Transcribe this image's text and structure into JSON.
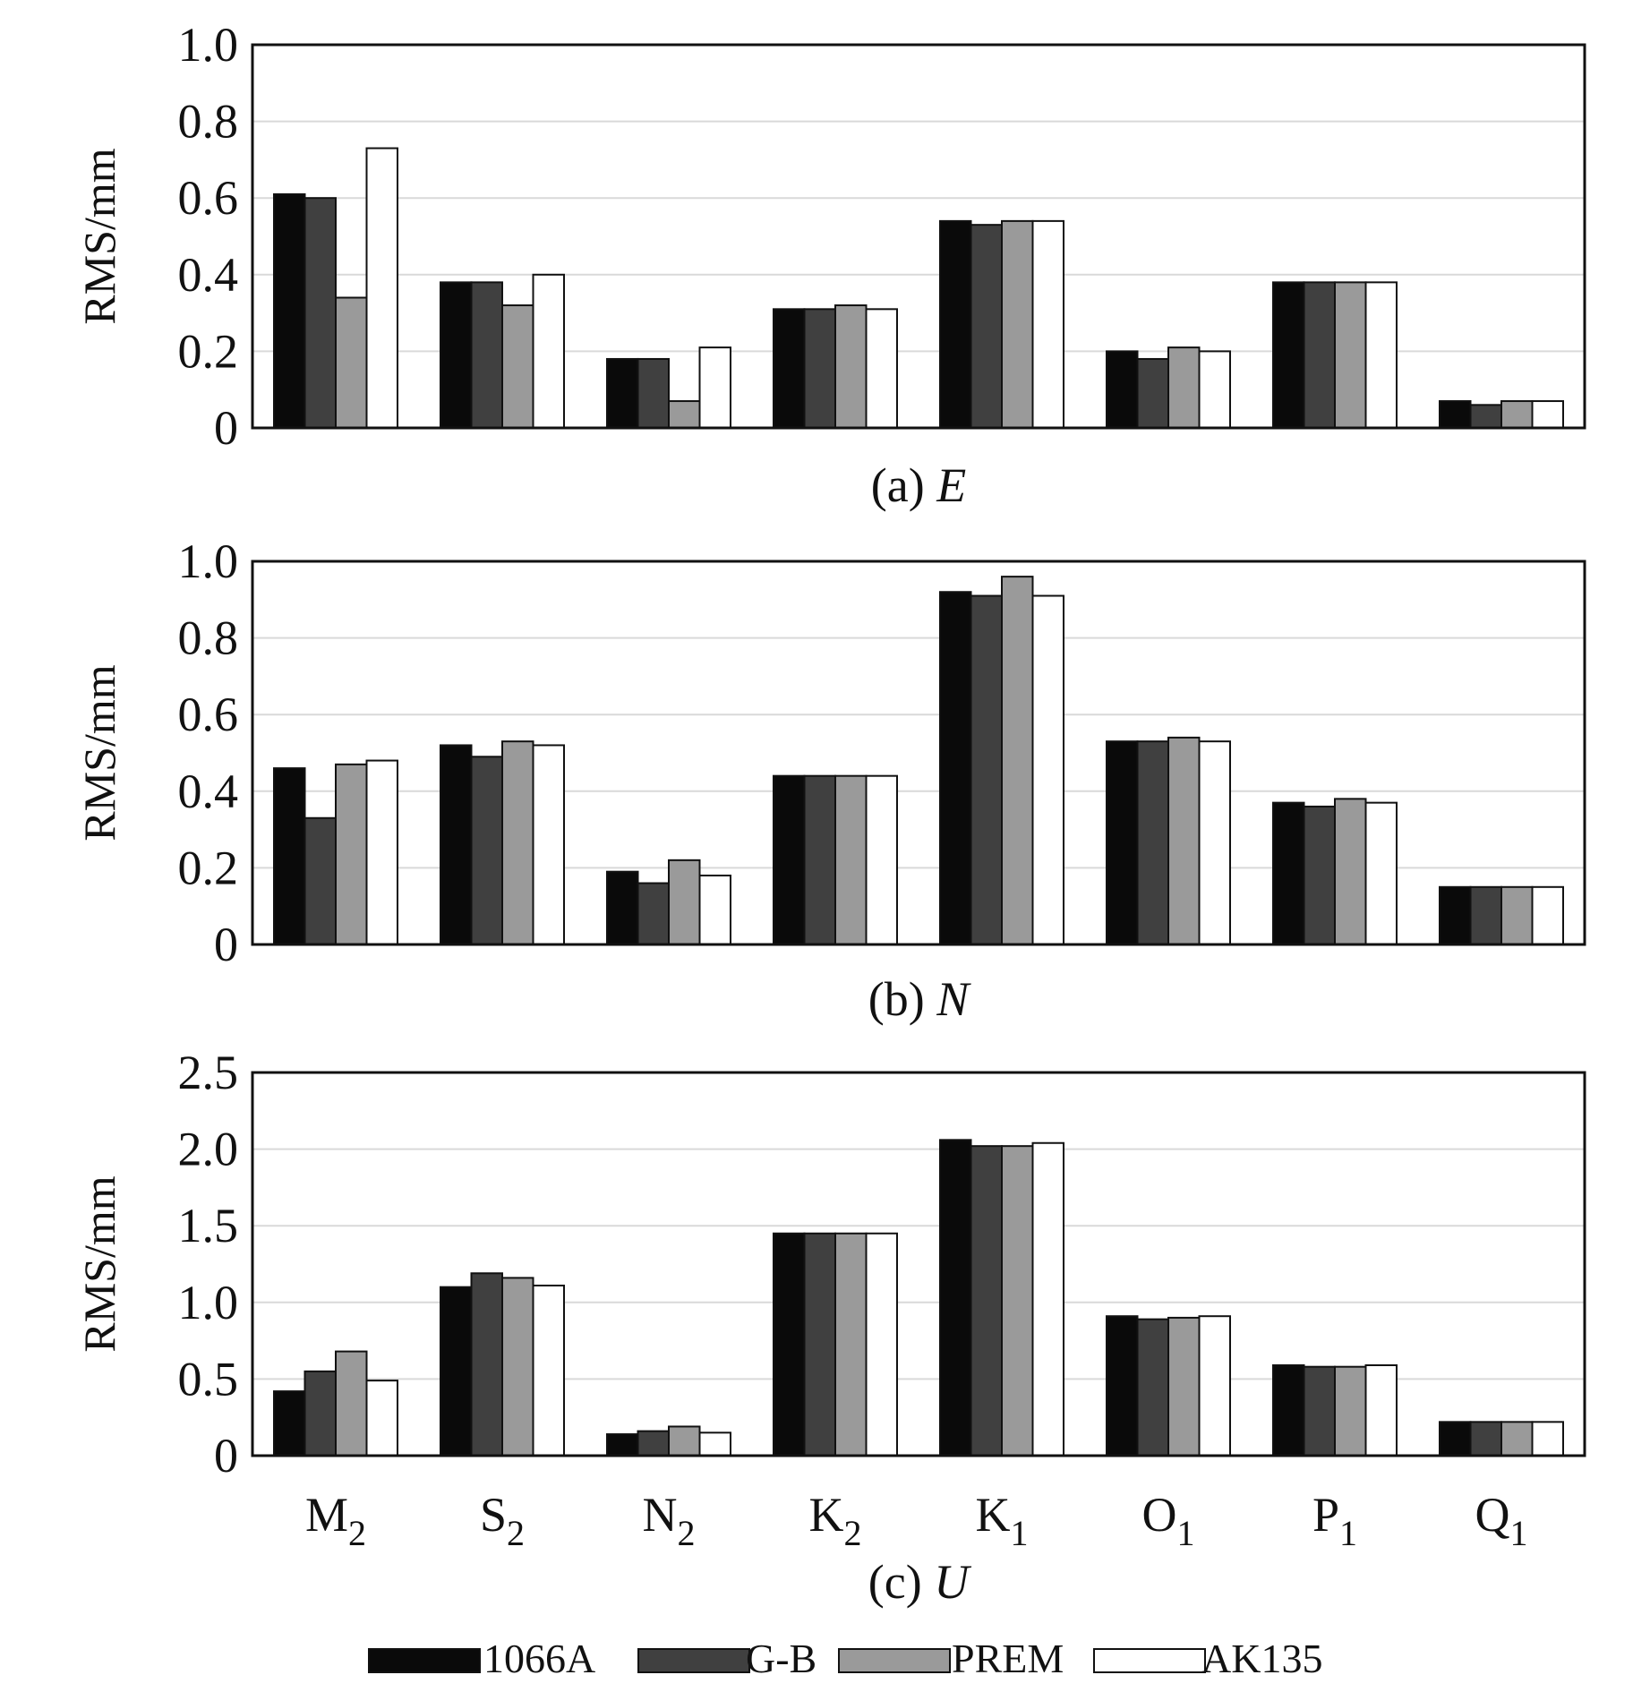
{
  "chart_data": [
    {
      "type": "bar",
      "caption_prefix": "(a) ",
      "caption_italic": "E",
      "ylabel": "RMS/mm",
      "ylim": [
        0,
        1.0
      ],
      "yticks": [
        "0",
        "0.2",
        "0.4",
        "0.6",
        "0.8",
        "1.0"
      ],
      "ytick_values": [
        0,
        0.2,
        0.4,
        0.6,
        0.8,
        1.0
      ],
      "categories": [
        "M2",
        "S2",
        "N2",
        "K2",
        "K1",
        "O1",
        "P1",
        "Q1"
      ],
      "grid": true,
      "series": [
        {
          "name": "1066A",
          "values": [
            0.61,
            0.38,
            0.18,
            0.31,
            0.54,
            0.2,
            0.38,
            0.07
          ]
        },
        {
          "name": "G-B",
          "values": [
            0.6,
            0.38,
            0.18,
            0.31,
            0.53,
            0.18,
            0.38,
            0.06
          ]
        },
        {
          "name": "PREM",
          "values": [
            0.34,
            0.32,
            0.07,
            0.32,
            0.54,
            0.21,
            0.38,
            0.07
          ]
        },
        {
          "name": "AK135",
          "values": [
            0.73,
            0.4,
            0.21,
            0.31,
            0.54,
            0.2,
            0.38,
            0.07
          ]
        }
      ]
    },
    {
      "type": "bar",
      "caption_prefix": "(b) ",
      "caption_italic": "N",
      "ylabel": "RMS/mm",
      "ylim": [
        0,
        1.0
      ],
      "yticks": [
        "0",
        "0.2",
        "0.4",
        "0.6",
        "0.8",
        "1.0"
      ],
      "ytick_values": [
        0,
        0.2,
        0.4,
        0.6,
        0.8,
        1.0
      ],
      "categories": [
        "M2",
        "S2",
        "N2",
        "K2",
        "K1",
        "O1",
        "P1",
        "Q1"
      ],
      "grid": true,
      "series": [
        {
          "name": "1066A",
          "values": [
            0.46,
            0.52,
            0.19,
            0.44,
            0.92,
            0.53,
            0.37,
            0.15
          ]
        },
        {
          "name": "G-B",
          "values": [
            0.33,
            0.49,
            0.16,
            0.44,
            0.91,
            0.53,
            0.36,
            0.15
          ]
        },
        {
          "name": "PREM",
          "values": [
            0.47,
            0.53,
            0.22,
            0.44,
            0.96,
            0.54,
            0.38,
            0.15
          ]
        },
        {
          "name": "AK135",
          "values": [
            0.48,
            0.52,
            0.18,
            0.44,
            0.91,
            0.53,
            0.37,
            0.15
          ]
        }
      ]
    },
    {
      "type": "bar",
      "caption_prefix": "(c) ",
      "caption_italic": "U",
      "ylabel": "RMS/mm",
      "ylim": [
        0,
        2.5
      ],
      "yticks": [
        "0",
        "0.5",
        "1.0",
        "1.5",
        "2.0",
        "2.5"
      ],
      "ytick_values": [
        0,
        0.5,
        1.0,
        1.5,
        2.0,
        2.5
      ],
      "categories": [
        "M2",
        "S2",
        "N2",
        "K2",
        "K1",
        "O1",
        "P1",
        "Q1"
      ],
      "grid": true,
      "series": [
        {
          "name": "1066A",
          "values": [
            0.42,
            1.1,
            0.14,
            1.45,
            2.06,
            0.91,
            0.59,
            0.22
          ]
        },
        {
          "name": "G-B",
          "values": [
            0.55,
            1.19,
            0.16,
            1.45,
            2.02,
            0.89,
            0.58,
            0.22
          ]
        },
        {
          "name": "PREM",
          "values": [
            0.68,
            1.16,
            0.19,
            1.45,
            2.02,
            0.9,
            0.58,
            0.22
          ]
        },
        {
          "name": "AK135",
          "values": [
            0.49,
            1.11,
            0.15,
            1.45,
            2.04,
            0.91,
            0.59,
            0.22
          ]
        }
      ]
    }
  ],
  "x_tick_labels": [
    {
      "base": "M",
      "sub": "2"
    },
    {
      "base": "S",
      "sub": "2"
    },
    {
      "base": "N",
      "sub": "2"
    },
    {
      "base": "K",
      "sub": "2"
    },
    {
      "base": "K",
      "sub": "1"
    },
    {
      "base": "O",
      "sub": "1"
    },
    {
      "base": "P",
      "sub": "1"
    },
    {
      "base": "Q",
      "sub": "1"
    }
  ],
  "legend": {
    "placement": "bottom",
    "items": [
      {
        "label": "1066A",
        "color": "#0a0a0a"
      },
      {
        "label": "G-B",
        "color": "#404040"
      },
      {
        "label": "PREM",
        "color": "#9a9a9a"
      },
      {
        "label": "AK135",
        "color": "#ffffff"
      }
    ]
  },
  "colors": {
    "series": [
      "#0a0a0a",
      "#404040",
      "#9a9a9a",
      "#ffffff"
    ],
    "grid": "#d9d9d9",
    "axis": "#111111"
  }
}
